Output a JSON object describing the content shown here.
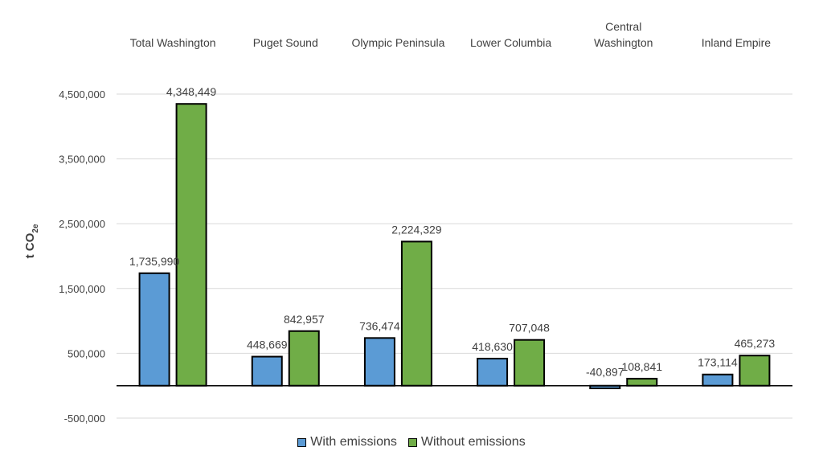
{
  "chart_data": {
    "type": "bar",
    "categories": [
      "Total Washington",
      "Puget Sound",
      "Olympic Peninsula",
      "Lower Columbia",
      "Central\nWashington",
      "Inland Empire"
    ],
    "series": [
      {
        "name": "With emissions",
        "values": [
          1735990,
          448669,
          736474,
          418630,
          -40897,
          173114
        ],
        "labels": [
          "1,735,990",
          "448,669",
          "736,474",
          "418,630",
          "-40,897",
          "173,114"
        ],
        "color": "#5B9BD5"
      },
      {
        "name": "Without emissions",
        "values": [
          4348449,
          842957,
          2224329,
          707048,
          108841,
          465273
        ],
        "labels": [
          "4,348,449",
          "842,957",
          "2,224,329",
          "707,048",
          "108,841",
          "465,273"
        ],
        "color": "#70AD47"
      }
    ],
    "ylabel": "t CO2e",
    "ylim": [
      -500000,
      4500000
    ],
    "yticks": [
      -500000,
      500000,
      1500000,
      2500000,
      3500000,
      4500000
    ],
    "ytick_labels": [
      "-500,000",
      "500,000",
      "1,500,000",
      "2,500,000",
      "3,500,000",
      "4,500,000"
    ],
    "grid": true,
    "legend_position": "bottom",
    "category_labels_position": "top"
  }
}
